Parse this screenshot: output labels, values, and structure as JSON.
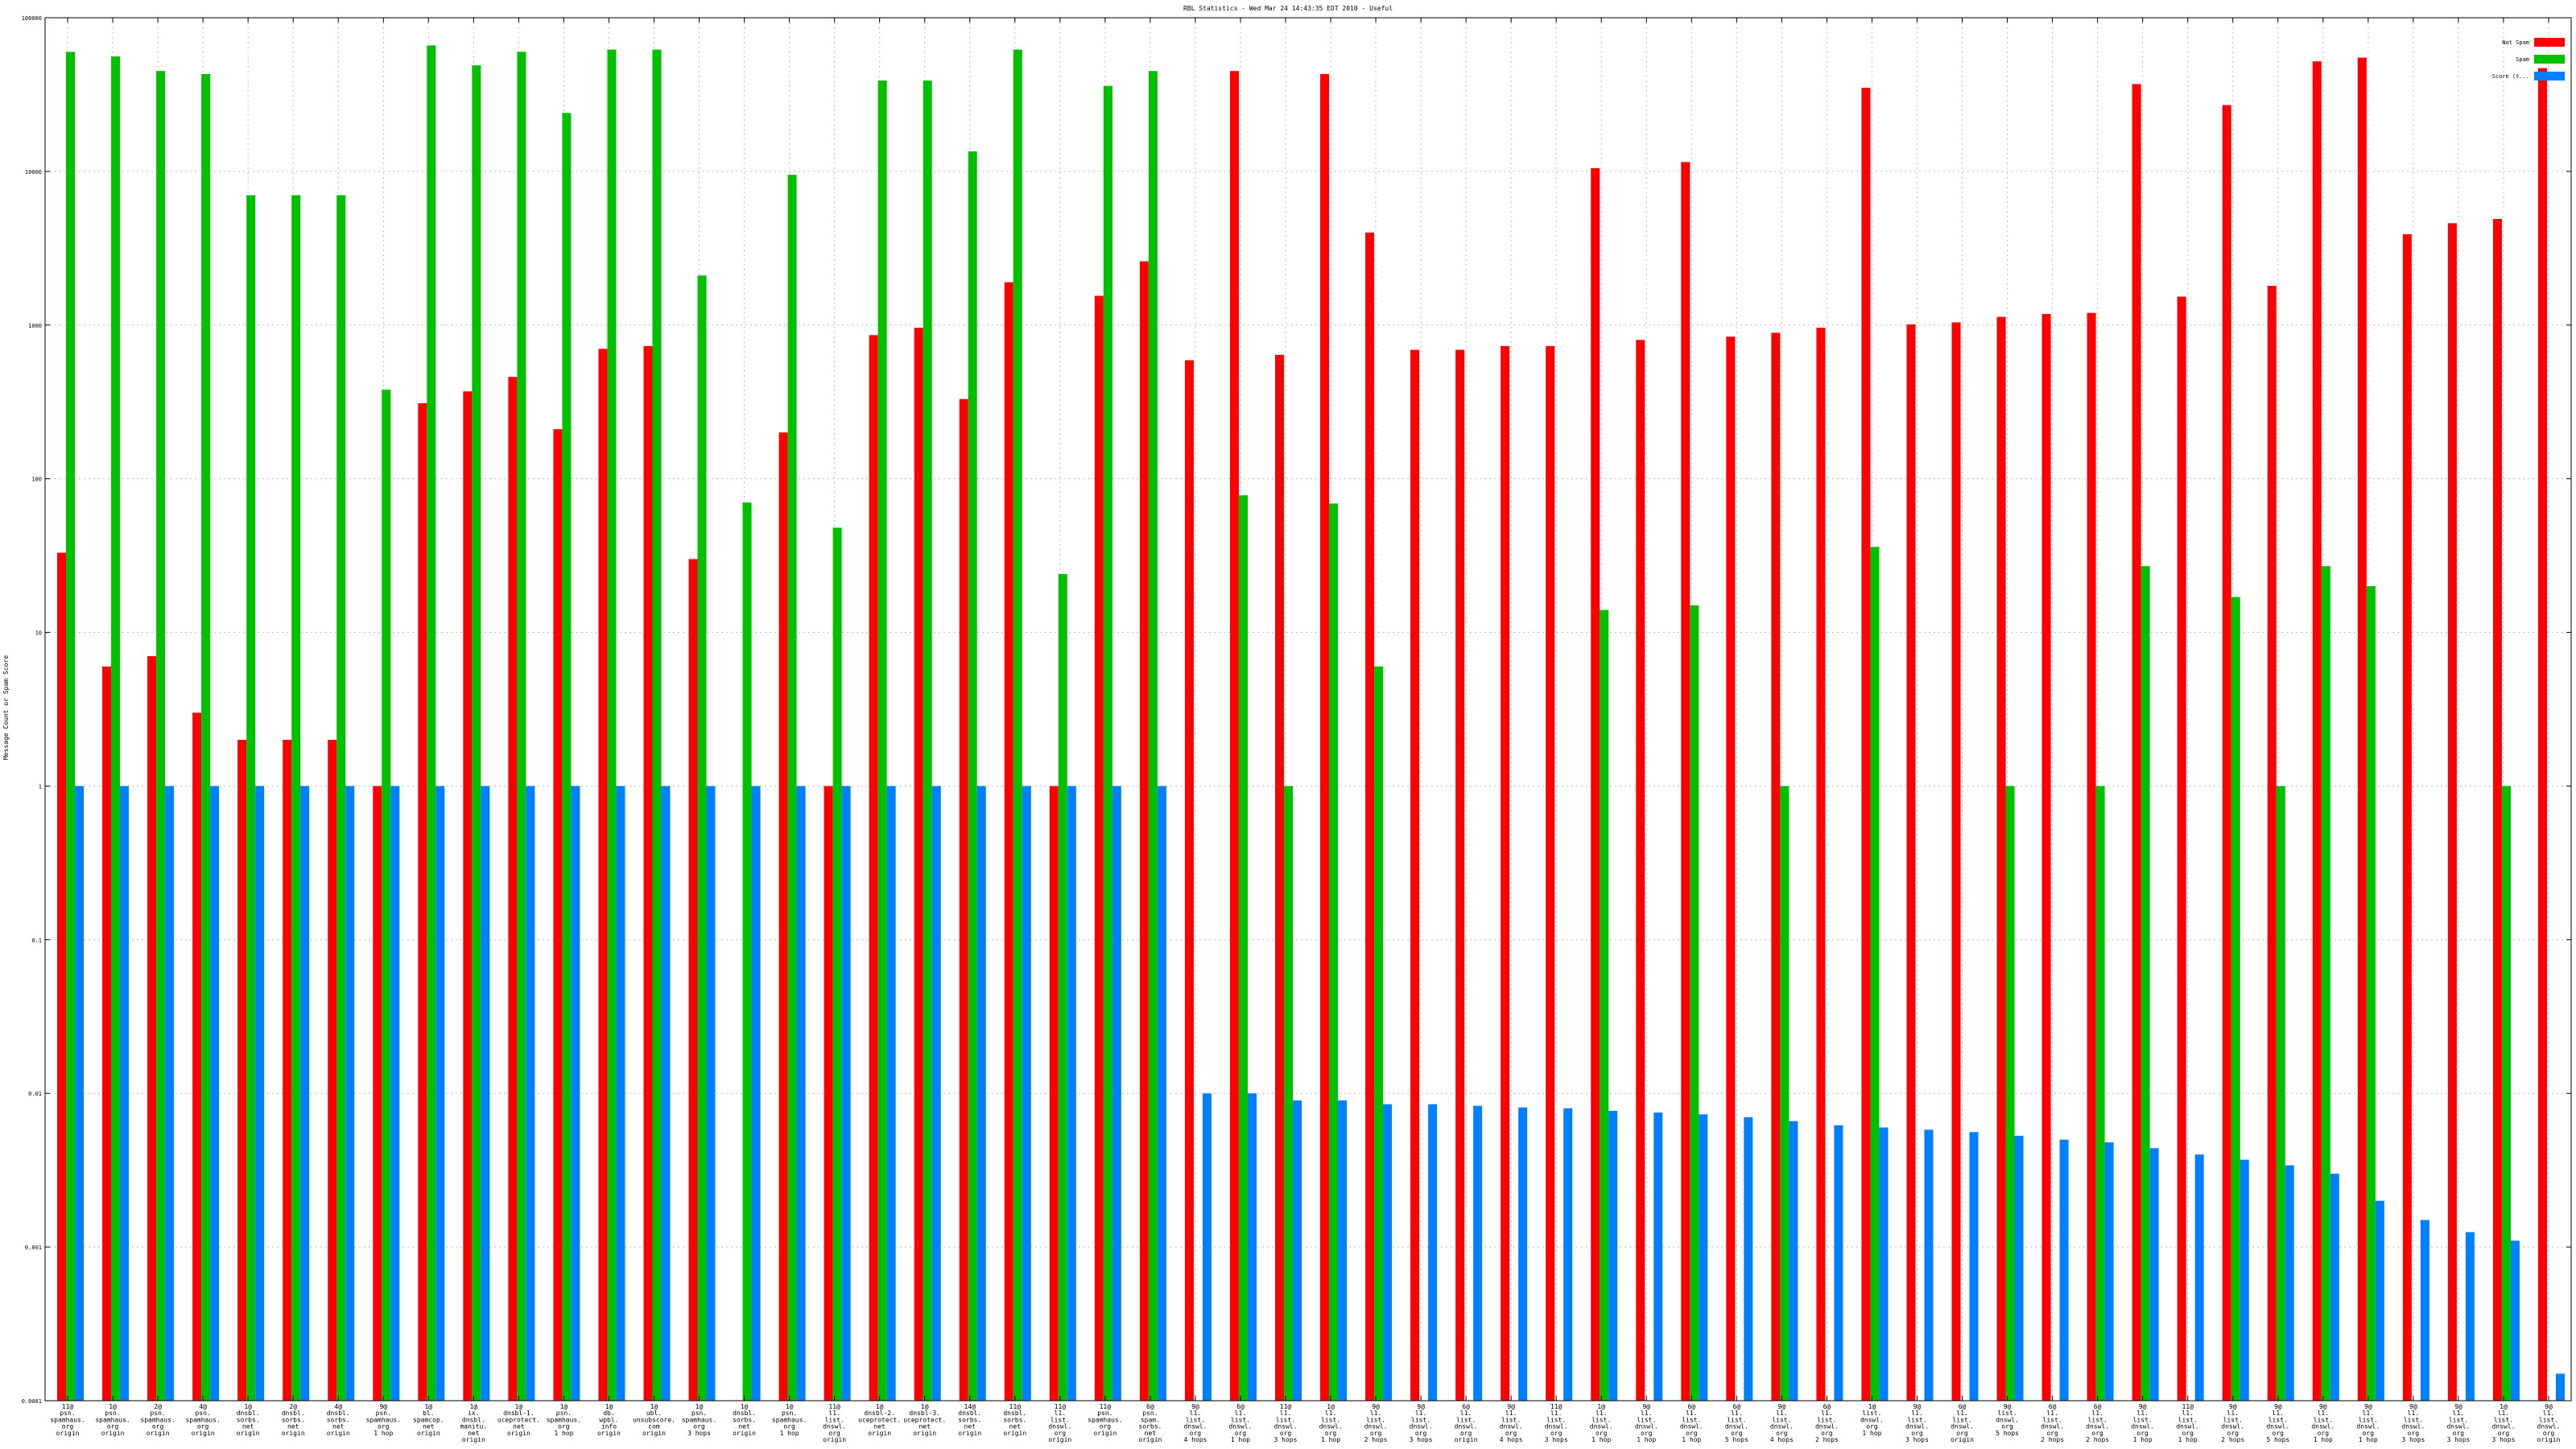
{
  "chart_data": {
    "type": "bar",
    "title": "RBL Statistics - Wed Mar 24 14:43:35 EDT 2010 - Useful",
    "xlabel": "",
    "ylabel": "Message Count or Spam Score",
    "yscale": "log",
    "ylim": [
      0.0001,
      100000
    ],
    "y_ticks": [
      "0.0001",
      "0.001",
      "0.01",
      "0.1",
      "1",
      "10",
      "100",
      "1000",
      "10000",
      "100000"
    ],
    "grid": true,
    "legend_position": "top-right",
    "categories": [
      [
        "11@",
        "psn.",
        "spamhaus.",
        "org",
        "origin"
      ],
      [
        "1@",
        "psn.",
        "spamhaus.",
        "org",
        "origin"
      ],
      [
        "2@",
        "psn.",
        "spamhaus.",
        "org",
        "origin"
      ],
      [
        "4@",
        "psn.",
        "spamhaus.",
        "org",
        "origin"
      ],
      [
        "1@",
        "dnsbl.",
        "sorbs.",
        "net",
        "origin"
      ],
      [
        "2@",
        "dnsbl.",
        "sorbs.",
        "net",
        "origin"
      ],
      [
        "4@",
        "dnsbl.",
        "sorbs.",
        "net",
        "origin"
      ],
      [
        "9@",
        "psn.",
        "spamhaus.",
        "org",
        "1 hop"
      ],
      [
        "1@",
        "bl.",
        "spamcop.",
        "net",
        "origin"
      ],
      [
        "1@",
        "ix.",
        "dnsbl.",
        "manitu.",
        "net",
        "origin"
      ],
      [
        "1@",
        "dnsbl-1.",
        "uceprotect.",
        "net",
        "origin"
      ],
      [
        "1@",
        "psn.",
        "spamhaus.",
        "org",
        "1 hop"
      ],
      [
        "1@",
        "db.",
        "wpbl.",
        "info",
        "origin"
      ],
      [
        "1@",
        "ubl.",
        "unsubscore.",
        "com",
        "origin"
      ],
      [
        "1@",
        "psn.",
        "spamhaus.",
        "org",
        "3 hops"
      ],
      [
        "1@",
        "dnsbl.",
        "sorbs.",
        "net",
        "origin"
      ],
      [
        "1@",
        "psn.",
        "spamhaus.",
        "org",
        "1 hop"
      ],
      [
        "11@",
        "l1.",
        "list.",
        "dnswl.",
        "org",
        "origin"
      ],
      [
        "1@",
        "dnsbl-2.",
        "uceprotect.",
        "net",
        "origin"
      ],
      [
        "1@",
        "dnsbl-3.",
        "uceprotect.",
        "net",
        "origin"
      ],
      [
        "14@",
        "dnsbl.",
        "sorbs.",
        "net",
        "origin"
      ],
      [
        "11@",
        "dnsbl.",
        "sorbs.",
        "net",
        "origin"
      ],
      [
        "11@",
        "l1.",
        "list.",
        "dnswl.",
        "org",
        "origin"
      ],
      [
        "11@",
        "psn.",
        "spamhaus.",
        "org",
        "origin"
      ],
      [
        "6@",
        "psn.",
        "spam.",
        "sorbs.",
        "net",
        "origin"
      ],
      [
        "9@",
        "l1.",
        "list.",
        "dnswl.",
        "org",
        "4 hops"
      ],
      [
        "6@",
        "l1.",
        "list.",
        "dnswl.",
        "org",
        "1 hop"
      ],
      [
        "11@",
        "l1.",
        "list.",
        "dnswl.",
        "org",
        "3 hops"
      ],
      [
        "1@",
        "l1.",
        "list.",
        "dnswl.",
        "org",
        "1 hop"
      ],
      [
        "9@",
        "l1.",
        "list.",
        "dnswl.",
        "org",
        "2 hops"
      ],
      [
        "9@",
        "l1.",
        "list.",
        "dnswl.",
        "org",
        "3 hops"
      ],
      [
        "6@",
        "l1.",
        "list.",
        "dnswl.",
        "org",
        "origin"
      ],
      [
        "9@",
        "l1.",
        "list.",
        "dnswl.",
        "org",
        "4 hops"
      ],
      [
        "11@",
        "l1.",
        "list.",
        "dnswl.",
        "org",
        "3 hops"
      ],
      [
        "1@",
        "l1.",
        "list.",
        "dnswl.",
        "org",
        "1 hop"
      ],
      [
        "9@",
        "l1.",
        "list.",
        "dnswl.",
        "org",
        "1 hop"
      ],
      [
        "6@",
        "l1.",
        "list.",
        "dnswl.",
        "org",
        "1 hop"
      ],
      [
        "6@",
        "l1.",
        "list.",
        "dnswl.",
        "org",
        "5 hops"
      ],
      [
        "9@",
        "l1.",
        "list.",
        "dnswl.",
        "org",
        "4 hops"
      ],
      [
        "6@",
        "l1.",
        "list.",
        "dnswl.",
        "org",
        "2 hops"
      ],
      [
        "1@",
        "list.",
        "dnswl.",
        "org",
        "1 hop"
      ],
      [
        "9@",
        "l1.",
        "list.",
        "dnswl.",
        "org",
        "3 hops"
      ],
      [
        "6@",
        "l1.",
        "list.",
        "dnswl.",
        "org",
        "origin"
      ],
      [
        "9@",
        "list.",
        "dnswl.",
        "org",
        "5 hops"
      ],
      [
        "6@",
        "l1.",
        "list.",
        "dnswl.",
        "org",
        "2 hops"
      ],
      [
        "6@",
        "l1.",
        "list.",
        "dnswl.",
        "org",
        "2 hops"
      ],
      [
        "9@",
        "l1.",
        "list.",
        "dnswl.",
        "org",
        "1 hop"
      ],
      [
        "11@",
        "l1.",
        "list.",
        "dnswl.",
        "org",
        "1 hop"
      ],
      [
        "9@",
        "l1.",
        "list.",
        "dnswl.",
        "org",
        "2 hops"
      ],
      [
        "9@",
        "l1.",
        "list.",
        "dnswl.",
        "org",
        "5 hops"
      ],
      [
        "9@",
        "l1.",
        "list.",
        "dnswl.",
        "org",
        "1 hop"
      ],
      [
        "9@",
        "l1.",
        "list.",
        "dnswl.",
        "org",
        "1 hop"
      ],
      [
        "9@",
        "l1.",
        "list.",
        "dnswl.",
        "org",
        "3 hops"
      ],
      [
        "9@",
        "l1.",
        "list.",
        "dnswl.",
        "org",
        "3 hops"
      ],
      [
        "1@",
        "l1.",
        "list.",
        "dnswl.",
        "org",
        "3 hops"
      ],
      [
        "9@",
        "l1.",
        "list.",
        "dnswl.",
        "org",
        "origin"
      ]
    ],
    "series": [
      {
        "name": "Not Spam",
        "color": "#ff0000",
        "values": [
          33,
          6,
          7,
          3,
          2,
          2,
          2,
          1,
          310,
          370,
          460,
          210,
          700,
          730,
          30,
          null,
          200,
          1,
          860,
          960,
          330,
          1900,
          1,
          1550,
          2600,
          590,
          45000,
          640,
          43000,
          4000,
          690,
          690,
          730,
          730,
          10500,
          800,
          11500,
          840,
          890,
          960,
          35000,
          1010,
          1040,
          1130,
          1180,
          1200,
          37000,
          1530,
          27000,
          1800,
          52000,
          55000,
          3900,
          4600,
          4900,
          47000
        ]
      },
      {
        "name": "Spam",
        "color": "#00c000",
        "values": [
          60000,
          56000,
          45000,
          43000,
          7000,
          7000,
          7000,
          380,
          66000,
          49000,
          60000,
          24000,
          62000,
          62000,
          2100,
          70,
          9500,
          48,
          39000,
          39000,
          13500,
          62000,
          24,
          36000,
          45000,
          null,
          78,
          1,
          69,
          6,
          null,
          null,
          null,
          null,
          14,
          null,
          15,
          null,
          1,
          null,
          36,
          null,
          null,
          1,
          null,
          1,
          27,
          null,
          17,
          1,
          27,
          20,
          null,
          null,
          1,
          null
        ]
      },
      {
        "name": "Score (t...",
        "color": "#0080ff",
        "values": [
          1,
          1,
          1,
          1,
          1,
          1,
          1,
          1,
          1,
          1,
          1,
          1,
          1,
          1,
          1,
          1,
          1,
          1,
          1,
          1,
          1,
          1,
          1,
          1,
          1,
          0.01,
          0.01,
          0.009,
          0.009,
          0.0085,
          0.0085,
          0.0083,
          0.0081,
          0.008,
          0.0077,
          0.0075,
          0.0073,
          0.007,
          0.0066,
          0.0062,
          0.006,
          0.0058,
          0.0056,
          0.0053,
          0.005,
          0.0048,
          0.0044,
          0.004,
          0.0037,
          0.0034,
          0.003,
          0.002,
          0.0015,
          0.00125,
          0.0011,
          0.00015
        ]
      }
    ]
  }
}
